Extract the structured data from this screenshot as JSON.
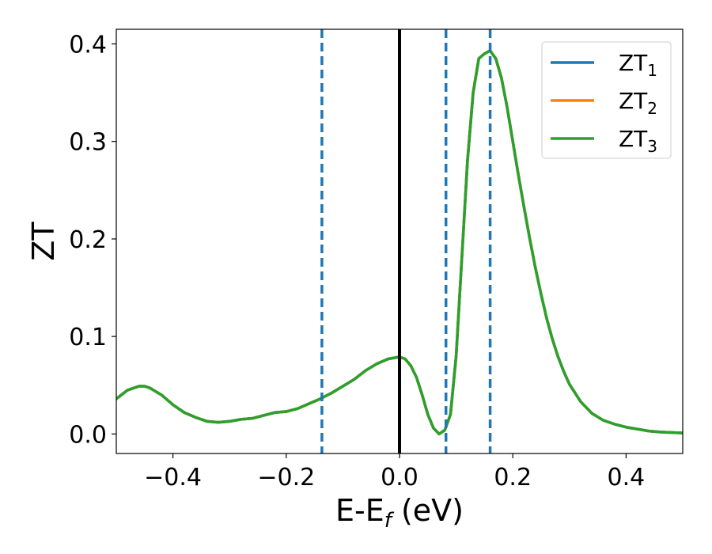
{
  "chart_data": {
    "type": "line",
    "xlabel": {
      "main": "E-E",
      "sub": "f",
      "unit": " (eV)"
    },
    "ylabel": "ZT",
    "xlim": [
      -0.5,
      0.5
    ],
    "ylim": [
      -0.02,
      0.415
    ],
    "grid": false,
    "legend_position": "top-right",
    "x_ticks": [
      -0.4,
      -0.2,
      0.0,
      0.2,
      0.4
    ],
    "x_tick_labels": [
      "−0.4",
      "−0.2",
      "0.0",
      "0.2",
      "0.4"
    ],
    "y_ticks": [
      0.0,
      0.1,
      0.2,
      0.3,
      0.4
    ],
    "y_tick_labels": [
      "0.0",
      "0.1",
      "0.2",
      "0.3",
      "0.4"
    ],
    "x": [
      -0.5,
      -0.48,
      -0.46,
      -0.45,
      -0.44,
      -0.42,
      -0.4,
      -0.38,
      -0.36,
      -0.34,
      -0.32,
      -0.3,
      -0.28,
      -0.26,
      -0.24,
      -0.22,
      -0.2,
      -0.18,
      -0.16,
      -0.14,
      -0.12,
      -0.1,
      -0.08,
      -0.06,
      -0.04,
      -0.02,
      -0.01,
      0.0,
      0.01,
      0.02,
      0.03,
      0.04,
      0.05,
      0.06,
      0.07,
      0.08,
      0.09,
      0.1,
      0.11,
      0.12,
      0.13,
      0.14,
      0.15,
      0.16,
      0.17,
      0.18,
      0.19,
      0.2,
      0.21,
      0.22,
      0.23,
      0.24,
      0.25,
      0.26,
      0.27,
      0.28,
      0.29,
      0.3,
      0.32,
      0.34,
      0.36,
      0.38,
      0.4,
      0.42,
      0.44,
      0.46,
      0.48,
      0.5
    ],
    "series": [
      {
        "name": "ZT",
        "sub": "1",
        "color": "#1f77b4",
        "values": [
          0.036,
          0.045,
          0.049,
          0.049,
          0.047,
          0.04,
          0.03,
          0.022,
          0.017,
          0.013,
          0.012,
          0.013,
          0.015,
          0.016,
          0.019,
          0.022,
          0.023,
          0.026,
          0.031,
          0.036,
          0.042,
          0.049,
          0.056,
          0.065,
          0.072,
          0.077,
          0.078,
          0.079,
          0.077,
          0.07,
          0.058,
          0.04,
          0.02,
          0.006,
          0.0,
          0.004,
          0.02,
          0.08,
          0.18,
          0.28,
          0.35,
          0.385,
          0.39,
          0.393,
          0.385,
          0.365,
          0.335,
          0.3,
          0.265,
          0.232,
          0.2,
          0.17,
          0.143,
          0.118,
          0.097,
          0.079,
          0.064,
          0.051,
          0.033,
          0.021,
          0.014,
          0.01,
          0.007,
          0.005,
          0.003,
          0.002,
          0.0015,
          0.001
        ]
      },
      {
        "name": "ZT",
        "sub": "2",
        "color": "#ff7f0e",
        "values": [
          0.036,
          0.045,
          0.049,
          0.049,
          0.047,
          0.04,
          0.03,
          0.022,
          0.017,
          0.013,
          0.012,
          0.013,
          0.015,
          0.016,
          0.019,
          0.022,
          0.023,
          0.026,
          0.031,
          0.036,
          0.042,
          0.049,
          0.056,
          0.065,
          0.072,
          0.077,
          0.078,
          0.079,
          0.077,
          0.07,
          0.058,
          0.04,
          0.02,
          0.006,
          0.0,
          0.004,
          0.02,
          0.08,
          0.18,
          0.28,
          0.35,
          0.385,
          0.39,
          0.393,
          0.385,
          0.365,
          0.335,
          0.3,
          0.265,
          0.232,
          0.2,
          0.17,
          0.143,
          0.118,
          0.097,
          0.079,
          0.064,
          0.051,
          0.033,
          0.021,
          0.014,
          0.01,
          0.007,
          0.005,
          0.003,
          0.002,
          0.0015,
          0.001
        ]
      },
      {
        "name": "ZT",
        "sub": "3",
        "color": "#2ca02c",
        "values": [
          0.036,
          0.045,
          0.049,
          0.049,
          0.047,
          0.04,
          0.03,
          0.022,
          0.017,
          0.013,
          0.012,
          0.013,
          0.015,
          0.016,
          0.019,
          0.022,
          0.023,
          0.026,
          0.031,
          0.036,
          0.042,
          0.049,
          0.056,
          0.065,
          0.072,
          0.077,
          0.078,
          0.079,
          0.077,
          0.07,
          0.058,
          0.04,
          0.02,
          0.006,
          0.0,
          0.004,
          0.02,
          0.08,
          0.18,
          0.28,
          0.35,
          0.385,
          0.39,
          0.393,
          0.385,
          0.365,
          0.335,
          0.3,
          0.265,
          0.232,
          0.2,
          0.17,
          0.143,
          0.118,
          0.097,
          0.079,
          0.064,
          0.051,
          0.033,
          0.021,
          0.014,
          0.01,
          0.007,
          0.005,
          0.003,
          0.002,
          0.0015,
          0.001
        ]
      }
    ],
    "vertical_lines": [
      {
        "x": -0.137,
        "style": "dashed",
        "color": "#1f77b4"
      },
      {
        "x": 0.0,
        "style": "solid",
        "color": "#000000"
      },
      {
        "x": 0.082,
        "style": "dashed",
        "color": "#1f77b4"
      },
      {
        "x": 0.16,
        "style": "dashed",
        "color": "#1f77b4"
      }
    ]
  }
}
